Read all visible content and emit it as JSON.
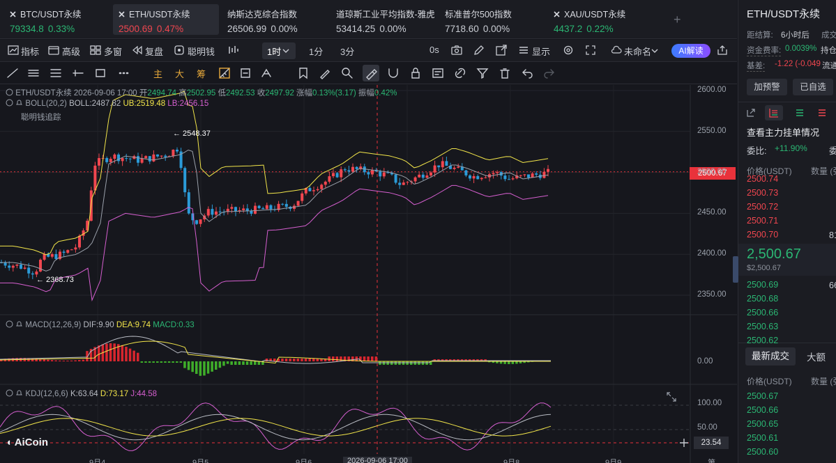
{
  "tickers": [
    {
      "name": "BTC/USDT永续",
      "price": "79334.8",
      "change": "0.33%",
      "dir": "up",
      "closable": true
    },
    {
      "name": "ETH/USDT永续",
      "price": "2500.69",
      "change": "0.47%",
      "dir": "dn",
      "closable": true
    },
    {
      "name": "纳斯达克综合指数",
      "price": "26506.99",
      "change": "0.00%",
      "dir": "flat",
      "closable": false
    },
    {
      "name": "道琼斯工业平均指数-雅虎",
      "price": "53414.25",
      "change": "0.00%",
      "dir": "flat",
      "closable": false
    },
    {
      "name": "标准普尔500指数",
      "price": "7718.60",
      "change": "0.00%",
      "dir": "flat",
      "closable": false
    },
    {
      "name": "XAU/USDT永续",
      "price": "4437.2",
      "change": "0.22%",
      "dir": "up",
      "closable": true
    }
  ],
  "toolbar": {
    "indicators": "指标",
    "advanced": "高级",
    "multi_window": "多窗",
    "replay": "复盘",
    "smart_money": "聪明钱",
    "timeframe": "1时",
    "tf_1m": "1分",
    "tf_3m": "3分",
    "zero_s": "0s",
    "display": "显示",
    "unnamed": "未命名",
    "ai": "AI解读"
  },
  "drawbar": {
    "zhu": "主",
    "da": "大",
    "chou": "筹"
  },
  "legend": {
    "symbol": "ETH/USDT永续",
    "time": "2026-09-06 17:00",
    "open_l": "开",
    "open": "2494.74",
    "high_l": "高",
    "high": "2502.95",
    "low_l": "低",
    "low": "2492.53",
    "close_l": "收",
    "close": "2497.92",
    "chg_l": "涨幅",
    "chg": "0.13%(3.17)",
    "amp_l": "振幅",
    "amp": "0.42%",
    "boll_name": "BOLL(20,2)",
    "boll": "BOLL:2487.82",
    "ub": "UB:2519.48",
    "lb": "LB:2456.15",
    "smart": "聪明钱追踪",
    "macd_name": "MACD(12,26,9)",
    "dif": "DIF:9.90",
    "dea": "DEA:9.74",
    "macd": "MACD:0.33",
    "kdj_name": "KDJ(12,6,6)",
    "k": "K:63.64",
    "d": "D:73.17",
    "j": "J:44.58"
  },
  "price_axis": [
    "2600.00",
    "2550.00",
    "2500.00",
    "2450.00",
    "2400.00",
    "2350.00"
  ],
  "macd_axis": [
    "0.00"
  ],
  "kdj_axis": [
    "100.00",
    "50.00"
  ],
  "current_price": "2500.67",
  "kdj_tag": "23.54",
  "annotations": {
    "high": "2548.37",
    "low": "2368.73"
  },
  "date_axis": [
    "9月4",
    "9月5",
    "9月6",
    "2026-09-06 17:00",
    "9月8",
    "9月9",
    "第"
  ],
  "logo": "AiCoin",
  "colors": {
    "up": "#f0464f",
    "down": "#2b9bd8",
    "boll_upper": "#f3e64a",
    "boll_lower": "#d65fd0",
    "boll_mid": "#9aa0aa",
    "dif": "#b9bcc4",
    "dea": "#f3e64a",
    "macd_pos": "#d8262e",
    "macd_neg": "#3fae2a",
    "kdj_k": "#b9bcc4",
    "kdj_d": "#f3e64a",
    "kdj_j": "#d65fd0"
  },
  "chart_data": {
    "type": "candlestick",
    "symbol": "ETH/USDT永续",
    "interval": "1h",
    "ylim": [
      2330,
      2610
    ],
    "annotated_high": 2548.37,
    "annotated_low": 2368.73,
    "last_price": 2500.67
  },
  "right_panel": {
    "title": "ETH/USDT永续",
    "settle_label": "距结算:",
    "settle_value": "6小时后",
    "volume_label": "成交",
    "funding_label": "资金费率:",
    "funding_value": "0.0039%",
    "funding_extra": "持仓",
    "basis_label": "基差:",
    "basis_value": "-1.22 (-0.049",
    "basis_extra": "流通",
    "add_alert": "加预警",
    "added_watch": "已自选",
    "orderbook_title": "查看主力挂单情况",
    "ratio_label": "委比:",
    "ratio_value": "+11.90%",
    "ratio_extra": "委",
    "col_price": "价格(USDT)",
    "col_qty": "数量 (张",
    "asks": [
      "2500.74",
      "2500.73",
      "2500.72",
      "2500.71",
      "2500.70"
    ],
    "ask_qty_last": "81",
    "mid_price": "2,500.67",
    "mid_sub": "$2,500.67",
    "bids": [
      "2500.69",
      "2500.68",
      "2500.66",
      "2500.63",
      "2500.62"
    ],
    "bid_qty_first": "66",
    "trades_tab": "最新成交",
    "big_tab": "大额",
    "trades": [
      "2500.67",
      "2500.66",
      "2500.65",
      "2500.61",
      "2500.60"
    ]
  }
}
